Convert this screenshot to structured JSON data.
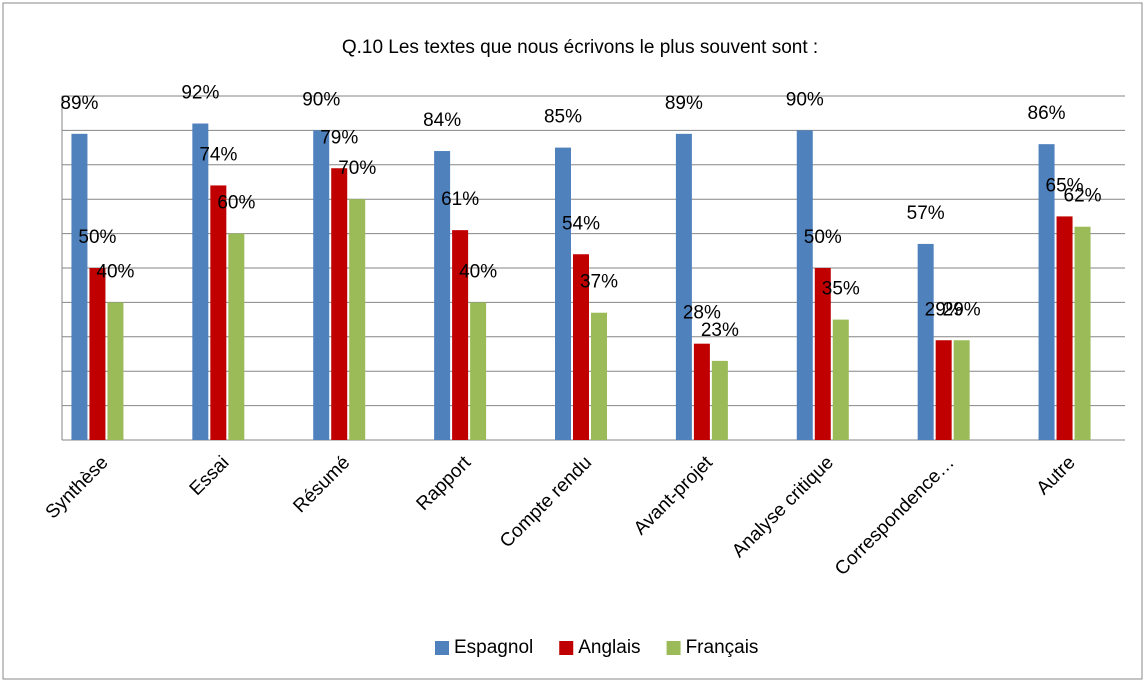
{
  "chart_data": {
    "type": "bar",
    "title": "Q.10 Les textes que nous écrivons le plus souvent sont :",
    "categories": [
      "Synthèse",
      "Essai",
      "Résumé",
      "Rapport",
      "Compte rendu",
      "Avant-projet",
      "Analyse critique",
      "Correspondence…",
      "Autre"
    ],
    "series": [
      {
        "name": "Espagnol",
        "color": "#4f81bd",
        "values": [
          89,
          92,
          90,
          84,
          85,
          89,
          90,
          57,
          86
        ],
        "value_labels": [
          "89%",
          "92%",
          "90%",
          "84%",
          "85%",
          "89%",
          "90%",
          "57%",
          "86%"
        ]
      },
      {
        "name": "Anglais",
        "color": "#c00000",
        "values": [
          50,
          74,
          79,
          61,
          54,
          28,
          50,
          29,
          65
        ],
        "value_labels": [
          "50%",
          "74%",
          "79%",
          "61%",
          "54%",
          "28%",
          "50%",
          "29%",
          "65%"
        ]
      },
      {
        "name": "Français",
        "color": "#9bbb59",
        "values": [
          40,
          60,
          70,
          40,
          37,
          23,
          35,
          29,
          62
        ],
        "value_labels": [
          "40%",
          "60%",
          "70%",
          "40%",
          "37%",
          "23%",
          "35%",
          "29%",
          "62%"
        ]
      }
    ],
    "ylim": [
      0,
      100
    ],
    "yticks": [
      0,
      10,
      20,
      30,
      40,
      50,
      60,
      70,
      80,
      90,
      100
    ],
    "grid": true,
    "legend": "bottom"
  }
}
